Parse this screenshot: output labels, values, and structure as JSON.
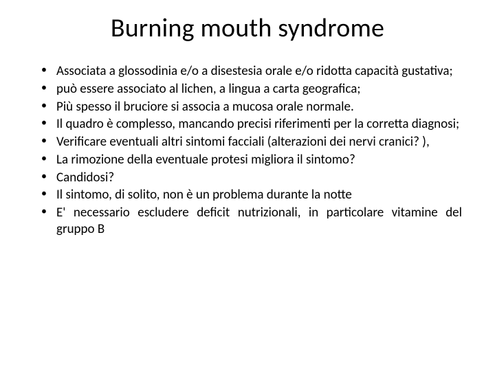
{
  "slide": {
    "title": "Burning mouth syndrome",
    "title_fontsize": 38,
    "title_color": "#000000",
    "background_color": "#ffffff",
    "bullet_fontsize": 19,
    "bullet_color": "#000000",
    "bullet_marker": "•",
    "text_align": "justify",
    "bullets": [
      "Associata a glossodinia e/o a disestesia orale e/o ridotta capacità gustativa;",
      "può essere associato al lichen, a lingua a carta geografica;",
      "Più spesso il bruciore si associa a mucosa orale normale.",
      "Il quadro è complesso, mancando precisi riferimenti per la corretta diagnosi;",
      "Verificare eventuali altri sintomi facciali (alterazioni dei nervi cranici? ),",
      "La rimozione della eventuale protesi migliora il sintomo?",
      "Candidosi?",
      "Il sintomo, di solito, non è un problema durante la notte",
      "E' necessario escludere deficit nutrizionali, in particolare vitamine del gruppo B"
    ]
  }
}
